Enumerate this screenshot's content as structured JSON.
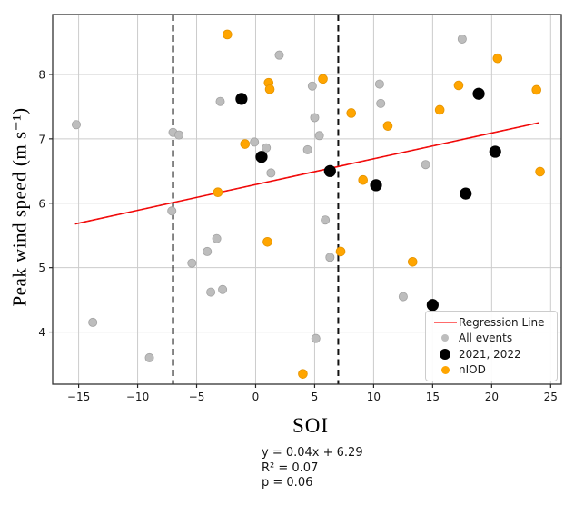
{
  "chart_data": {
    "type": "scatter",
    "title": "",
    "xlabel": "SOI",
    "ylabel": "Peak wind speed (m s⁻¹)",
    "xlim": [
      -17.2,
      25.9
    ],
    "ylim": [
      3.19,
      8.93
    ],
    "grid": true,
    "x_ticks": [
      -15,
      -10,
      -5,
      0,
      5,
      10,
      15,
      20,
      25
    ],
    "x_tick_labels": [
      "−15",
      "−10",
      "−5",
      "0",
      "5",
      "10",
      "15",
      "20",
      "25"
    ],
    "y_ticks": [
      4,
      5,
      6,
      7,
      8
    ],
    "y_tick_labels": [
      "4",
      "5",
      "6",
      "7",
      "8"
    ],
    "vlines": [
      -7,
      7
    ],
    "regression": {
      "label": "Regression Line",
      "slope": 0.04,
      "intercept": 6.29,
      "x_start": -15.3,
      "x_end": 24.0
    },
    "series": [
      {
        "name": "All events",
        "color": "#bdbdbd",
        "edge": "#a3a3a3",
        "radius": 4.6,
        "legend_marker_size": 8,
        "points": [
          [
            -15.2,
            7.22
          ],
          [
            -13.8,
            4.15
          ],
          [
            -9.0,
            3.6
          ],
          [
            -7.1,
            5.88
          ],
          [
            -7.0,
            7.1
          ],
          [
            -6.5,
            7.06
          ],
          [
            -5.4,
            5.07
          ],
          [
            -4.1,
            5.25
          ],
          [
            -3.8,
            4.62
          ],
          [
            -3.3,
            5.45
          ],
          [
            -3.0,
            7.58
          ],
          [
            -2.8,
            4.66
          ],
          [
            -0.1,
            6.95
          ],
          [
            0.9,
            6.86
          ],
          [
            1.3,
            6.47
          ],
          [
            2.0,
            8.3
          ],
          [
            4.4,
            6.83
          ],
          [
            4.8,
            7.82
          ],
          [
            5.0,
            7.33
          ],
          [
            5.4,
            7.05
          ],
          [
            5.1,
            3.9
          ],
          [
            5.9,
            5.74
          ],
          [
            6.3,
            5.16
          ],
          [
            10.5,
            7.85
          ],
          [
            10.6,
            7.55
          ],
          [
            12.5,
            4.55
          ],
          [
            14.4,
            6.6
          ],
          [
            17.5,
            8.55
          ]
        ]
      },
      {
        "name": "2021, 2022",
        "color": "#000000",
        "edge": "#000000",
        "radius": 6.2,
        "legend_marker_size": 12,
        "points": [
          [
            -1.2,
            7.62
          ],
          [
            0.5,
            6.72
          ],
          [
            6.3,
            6.5
          ],
          [
            10.2,
            6.28
          ],
          [
            15.0,
            4.42
          ],
          [
            17.8,
            6.15
          ],
          [
            18.9,
            7.7
          ],
          [
            20.3,
            6.8
          ]
        ]
      },
      {
        "name": "nIOD",
        "color": "#ffa500",
        "edge": "#e59400",
        "radius": 4.9,
        "legend_marker_size": 9,
        "points": [
          [
            -3.2,
            6.17
          ],
          [
            -2.4,
            8.62
          ],
          [
            -0.9,
            6.92
          ],
          [
            1.0,
            5.4
          ],
          [
            1.1,
            7.87
          ],
          [
            1.2,
            7.77
          ],
          [
            4.0,
            3.35
          ],
          [
            5.7,
            7.93
          ],
          [
            7.2,
            5.25
          ],
          [
            8.1,
            7.4
          ],
          [
            9.1,
            6.36
          ],
          [
            11.2,
            7.2
          ],
          [
            13.3,
            5.09
          ],
          [
            15.6,
            7.45
          ],
          [
            17.2,
            7.83
          ],
          [
            20.5,
            8.25
          ],
          [
            23.8,
            7.76
          ],
          [
            24.1,
            6.49
          ]
        ]
      }
    ],
    "annotation_lines": {
      "line1": "y = 0.04x + 6.29",
      "line2": "R² = 0.07",
      "line3": "p = 0.06"
    },
    "style": {
      "background": "#ffffff",
      "grid_color": "#cccccc",
      "spine_color": "#333333",
      "tick_color": "#262626",
      "tick_label_color": "#1a1a1a",
      "vline_color": "#111111",
      "regression_color": "#ff0f0f",
      "regression_overlay": "#b30000",
      "legend_line_color": "#ff6b6b"
    }
  }
}
